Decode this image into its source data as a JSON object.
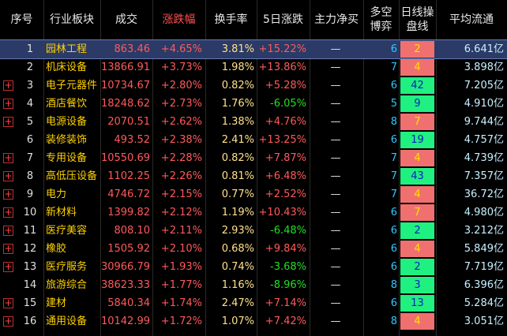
{
  "table": {
    "headers": [
      "序号",
      "行业板块",
      "成交",
      "涨跌幅",
      "换手率",
      "5日涨跌",
      "主力净买",
      "多空\n博弈",
      "日线操\n盘线",
      "平均流通"
    ],
    "rows": [
      [
        "1",
        "园林工程",
        "863.46",
        "+4.65%",
        "3.81%",
        "+15.22%",
        "—",
        "6",
        "2",
        "6.641亿"
      ],
      [
        "2",
        "机床设备",
        "13866.91",
        "+3.73%",
        "1.98%",
        "+13.86%",
        "—",
        "7",
        "4",
        "3.898亿"
      ],
      [
        "3",
        "电子元器件",
        "10734.67",
        "+2.80%",
        "0.82%",
        "+5.28%",
        "—",
        "6",
        "42",
        "7.205亿"
      ],
      [
        "4",
        "酒店餐饮",
        "18248.62",
        "+2.73%",
        "1.76%",
        "-6.05%",
        "—",
        "5",
        "9",
        "4.910亿"
      ],
      [
        "5",
        "电源设备",
        "2070.51",
        "+2.62%",
        "1.38%",
        "+4.76%",
        "—",
        "8",
        "7",
        "9.744亿"
      ],
      [
        "6",
        "装修装饰",
        "493.52",
        "+2.38%",
        "2.41%",
        "+13.25%",
        "—",
        "6",
        "19",
        "4.757亿"
      ],
      [
        "7",
        "专用设备",
        "10550.69",
        "+2.28%",
        "0.82%",
        "+7.87%",
        "—",
        "7",
        "4",
        "4.739亿"
      ],
      [
        "8",
        "高低压设备",
        "1102.25",
        "+2.26%",
        "0.81%",
        "+6.48%",
        "—",
        "7",
        "43",
        "7.357亿"
      ],
      [
        "9",
        "电力",
        "4746.72",
        "+2.15%",
        "0.77%",
        "+2.52%",
        "—",
        "7",
        "4",
        "36.72亿"
      ],
      [
        "10",
        "新材料",
        "1399.82",
        "+2.12%",
        "1.19%",
        "+10.43%",
        "—",
        "6",
        "7",
        "4.980亿"
      ],
      [
        "11",
        "医疗美容",
        "808.10",
        "+2.11%",
        "2.93%",
        "-6.48%",
        "—",
        "6",
        "2",
        "3.212亿"
      ],
      [
        "12",
        "橡胶",
        "1505.92",
        "+2.10%",
        "0.68%",
        "+9.84%",
        "—",
        "6",
        "4",
        "5.849亿"
      ],
      [
        "13",
        "医疗服务",
        "30966.79",
        "+1.93%",
        "0.74%",
        "-3.68%",
        "—",
        "6",
        "2",
        "7.719亿"
      ],
      [
        "14",
        "旅游综合",
        "38623.33",
        "+1.77%",
        "1.16%",
        "-8.96%",
        "—",
        "8",
        "3",
        "6.396亿"
      ],
      [
        "15",
        "建材",
        "5840.34",
        "+1.74%",
        "2.47%",
        "+7.14%",
        "—",
        "6",
        "13",
        "5.284亿"
      ],
      [
        "16",
        "通用设备",
        "10142.99",
        "+1.72%",
        "1.07%",
        "+7.42%",
        "—",
        "8",
        "4",
        "3.051亿"
      ]
    ]
  }
}
